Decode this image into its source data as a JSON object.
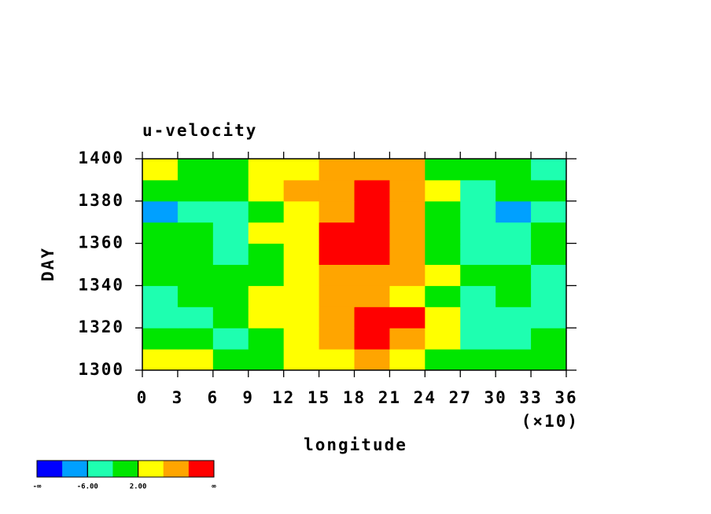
{
  "chart_data": {
    "type": "heatmap",
    "title": "u-velocity",
    "x_label": "longitude",
    "x_multiplier": "(×10)",
    "y_label": "DAY",
    "x": [
      1.5,
      4.5,
      7.5,
      10.5,
      13.5,
      16.5,
      19.5,
      22.5,
      25.5,
      28.5,
      31.5,
      34.5
    ],
    "y": [
      1305,
      1315,
      1325,
      1335,
      1345,
      1355,
      1365,
      1375,
      1385,
      1395
    ],
    "z": [
      [
        2,
        3,
        1,
        0,
        2,
        4,
        9,
        4,
        1,
        -2,
        -1,
        -1
      ],
      [
        0,
        1,
        -3,
        1,
        3,
        6,
        11,
        9,
        4,
        -3,
        -5,
        -2
      ],
      [
        -5,
        -3,
        0,
        2,
        4,
        9,
        12,
        11,
        3,
        -3,
        -6,
        -4
      ],
      [
        -3,
        -2,
        1,
        3,
        5,
        7,
        6,
        5,
        1,
        -4,
        -2,
        -3
      ],
      [
        0,
        1,
        -1,
        0,
        4,
        7,
        8,
        6,
        2,
        -2,
        0,
        -5
      ],
      [
        1,
        -2,
        -4,
        -1,
        4,
        10,
        12,
        8,
        -2,
        -6,
        -4,
        -2
      ],
      [
        -1,
        0,
        -3,
        2,
        5,
        11,
        13,
        9,
        1,
        -4,
        -3,
        -2
      ],
      [
        -7,
        -4,
        -3,
        1,
        4,
        8,
        10,
        9,
        0,
        -5,
        -8,
        -6
      ],
      [
        -2,
        0,
        1,
        3,
        6,
        9,
        11,
        9,
        2,
        -3,
        -2,
        -1
      ],
      [
        2,
        1,
        -1,
        2,
        5,
        8,
        9,
        6,
        1,
        -2,
        -1,
        -3
      ]
    ],
    "xlim": [
      0,
      36
    ],
    "xticks": [
      0,
      3,
      6,
      9,
      12,
      15,
      18,
      21,
      24,
      27,
      30,
      33,
      36
    ],
    "ylim": [
      1300,
      1400
    ],
    "yticks": [
      1300,
      1320,
      1340,
      1360,
      1380,
      1400
    ],
    "levels": [
      -10,
      -6,
      -2,
      2,
      6,
      10
    ],
    "colors": [
      "#0000ff",
      "#00a0ff",
      "#1effb0",
      "#00e600",
      "#ffff00",
      "#ffa500",
      "#ff0000"
    ],
    "colorbar_min_label": "-∞",
    "colorbar_max_label": "∞",
    "colorbar_ticks": [
      {
        "value": -6,
        "label": "-6.00"
      },
      {
        "value": 2,
        "label": "2.00"
      }
    ]
  }
}
